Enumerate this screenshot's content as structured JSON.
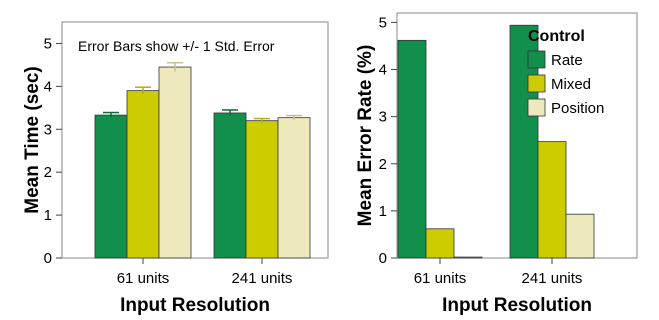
{
  "colors": {
    "Rate": "#138f4c",
    "Mixed": "#cccc00",
    "Position": "#eee8bd",
    "frame": "#888888"
  },
  "chart_data": [
    {
      "type": "bar",
      "categories": [
        "61 units",
        "241 units"
      ],
      "series": [
        {
          "name": "Rate",
          "values": [
            3.33,
            3.38
          ],
          "error": [
            0.06,
            0.07
          ]
        },
        {
          "name": "Mixed",
          "values": [
            3.9,
            3.2
          ],
          "error": [
            0.08,
            0.05
          ]
        },
        {
          "name": "Position",
          "values": [
            4.45,
            3.27
          ],
          "error": [
            0.1,
            0.05
          ]
        }
      ],
      "xlabel": "Input Resolution",
      "ylabel": "Mean Time (sec)",
      "ylim": [
        0,
        5.5
      ],
      "yticks": [
        0,
        1,
        2,
        3,
        4,
        5
      ],
      "annotation": "Error Bars show +/- 1 Std. Error",
      "grid": false
    },
    {
      "type": "bar",
      "categories": [
        "61 units",
        "241 units"
      ],
      "series": [
        {
          "name": "Rate",
          "values": [
            4.62,
            4.94
          ]
        },
        {
          "name": "Mixed",
          "values": [
            0.62,
            2.47
          ]
        },
        {
          "name": "Position",
          "values": [
            0.02,
            0.93
          ]
        }
      ],
      "xlabel": "Input Resolution",
      "ylabel": "Mean Error Rate (%)",
      "ylim": [
        0,
        5.2
      ],
      "yticks": [
        0,
        1,
        2,
        3,
        4,
        5
      ],
      "legend": {
        "title": "Control",
        "items": [
          "Rate",
          "Mixed",
          "Position"
        ],
        "placement": "top-right"
      },
      "grid": false
    }
  ]
}
